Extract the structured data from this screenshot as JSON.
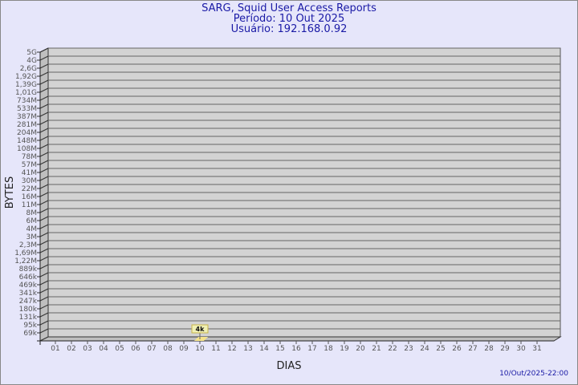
{
  "chart_data": {
    "type": "bar",
    "title": "SARG, Squid User Access Reports",
    "subtitle_period": "Período: 10 Out 2025",
    "subtitle_user": "Usuário: 192.168.0.92",
    "xlabel": "DIAS",
    "ylabel": "BYTES",
    "y_scale": "log",
    "y_ticks": [
      "5G",
      "4G",
      "2,6G",
      "1,92G",
      "1,39G",
      "1,01G",
      "734M",
      "533M",
      "387M",
      "281M",
      "204M",
      "148M",
      "108M",
      "78M",
      "57M",
      "41M",
      "30M",
      "22M",
      "16M",
      "11M",
      "8M",
      "6M",
      "4M",
      "3M",
      "2,3M",
      "1,69M",
      "1,22M",
      "889k",
      "646k",
      "469k",
      "341k",
      "247k",
      "180k",
      "131k",
      "95k",
      "69k"
    ],
    "categories": [
      "01",
      "02",
      "03",
      "04",
      "05",
      "06",
      "07",
      "08",
      "09",
      "10",
      "11",
      "12",
      "13",
      "14",
      "15",
      "16",
      "17",
      "18",
      "19",
      "20",
      "21",
      "22",
      "23",
      "24",
      "25",
      "26",
      "27",
      "28",
      "29",
      "30",
      "31"
    ],
    "values": [
      {
        "day": "10",
        "bytes": 4000,
        "label": "4k"
      }
    ],
    "grid": true,
    "colors": {
      "background": "#e6e6fa",
      "plot": "#d3d3d3",
      "wall_side": "#bfbfbf",
      "bar": "#f5e38a",
      "label_box": "#f0f0b4",
      "text": "#1a1aa6"
    }
  },
  "footer": {
    "timestamp": "10/Out/2025-22:00"
  }
}
